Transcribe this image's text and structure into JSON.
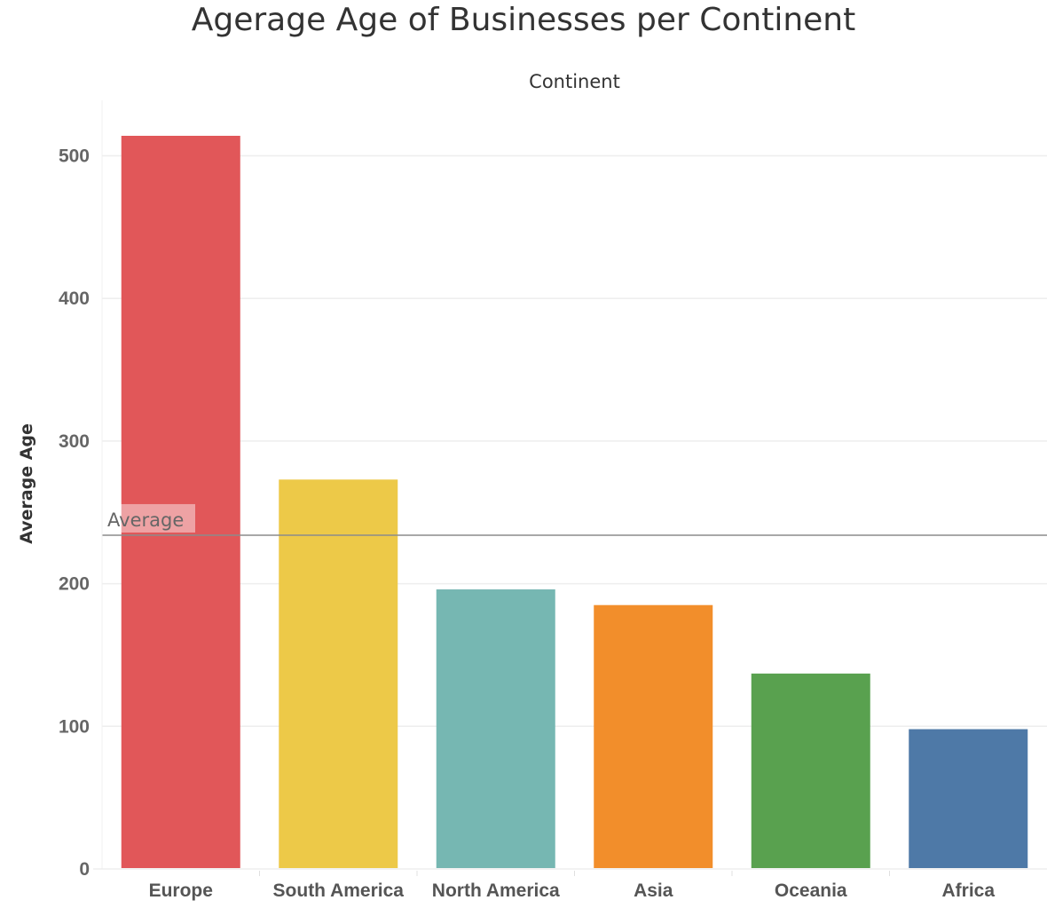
{
  "title": "Agerage Age of Businesses per Continent",
  "chart_data": {
    "type": "bar",
    "title": "Agerage Age of Businesses per Continent",
    "xlabel": "Continent",
    "ylabel": "Average Age",
    "categories": [
      "Europe",
      "South America",
      "North America",
      "Asia",
      "Oceania",
      "Africa"
    ],
    "values": [
      514,
      273,
      196,
      185,
      137,
      98
    ],
    "colors": [
      "#e15759",
      "#edc948",
      "#76b7b2",
      "#f28e2b",
      "#59a14f",
      "#4e79a7"
    ],
    "ylim": [
      0,
      540
    ],
    "yticks": [
      0,
      100,
      200,
      300,
      400,
      500
    ],
    "grid": true,
    "reference_line": {
      "label": "Average",
      "value": 234,
      "color": "#666666"
    }
  }
}
